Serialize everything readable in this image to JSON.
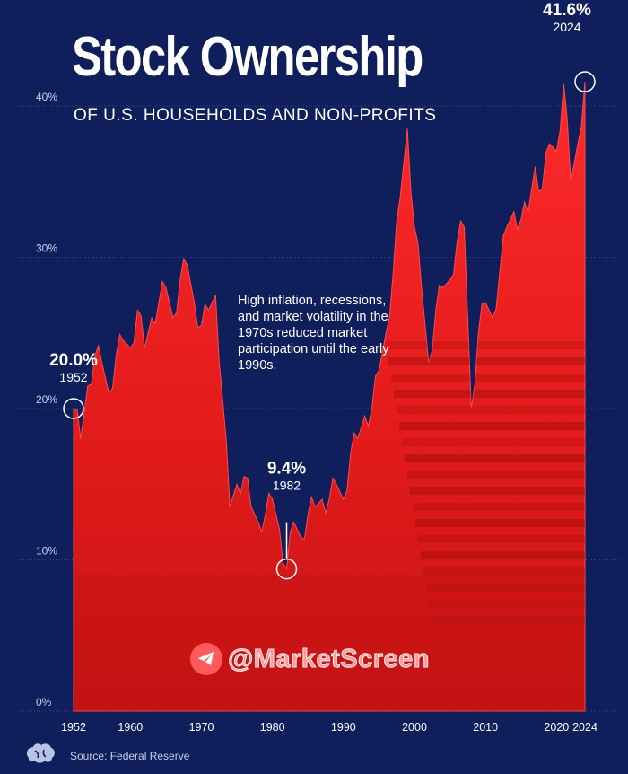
{
  "header": {
    "title": "Stock Ownership",
    "subtitle": "OF U.S. HOUSEHOLDS AND NON-PROFITS"
  },
  "annotation_text": "High inflation, recessions, and market volatility in the 1970s reduced market participation until the early 1990s.",
  "watermark": "@MarketScreen",
  "source": "Source: Federal Reserve",
  "colors": {
    "background": "#0f1f5c",
    "area": "#e01e1e",
    "area_light": "#ff3b3b",
    "text": "#ffffff"
  },
  "icons": {
    "watermark": "telegram-icon",
    "brand": "brain-logo-icon"
  },
  "chart_data": {
    "type": "area",
    "title": "Stock Ownership",
    "subtitle": "OF U.S. HOUSEHOLDS AND NON-PROFITS",
    "xlabel": "",
    "ylabel": "",
    "xlim": [
      1952,
      2024
    ],
    "ylim": [
      0,
      44
    ],
    "yticks": [
      0,
      10,
      20,
      30,
      40
    ],
    "ytick_labels": [
      "0%",
      "10%",
      "20%",
      "30%",
      "40%"
    ],
    "xticks": [
      1952,
      1960,
      1970,
      1980,
      1990,
      2000,
      2010,
      2020,
      2024
    ],
    "xtick_labels": [
      "1952",
      "1960",
      "1970",
      "1980",
      "1990",
      "2000",
      "2010",
      "2020",
      "2024"
    ],
    "grid": true,
    "x": [
      1952,
      1953,
      1954,
      1955,
      1956,
      1957,
      1958,
      1959,
      1960,
      1961,
      1962,
      1963,
      1964,
      1965,
      1966,
      1967,
      1968,
      1969,
      1970,
      1971,
      1972,
      1973,
      1974,
      1975,
      1976,
      1977,
      1978,
      1979,
      1980,
      1981,
      1982,
      1983,
      1984,
      1985,
      1986,
      1987,
      1988,
      1989,
      1990,
      1991,
      1992,
      1993,
      1994,
      1995,
      1996,
      1997,
      1998,
      1999,
      2000,
      2001,
      2002,
      2003,
      2004,
      2005,
      2006,
      2007,
      2008,
      2009,
      2010,
      2011,
      2012,
      2013,
      2014,
      2015,
      2016,
      2017,
      2018,
      2019,
      2020,
      2021,
      2022,
      2023,
      2024
    ],
    "values": [
      20.0,
      18.0,
      21.5,
      23.5,
      23.0,
      21.0,
      23.5,
      24.5,
      24.0,
      26.5,
      24.0,
      26.0,
      27.0,
      28.0,
      26.0,
      28.5,
      29.5,
      27.0,
      25.5,
      26.5,
      27.5,
      20.5,
      13.5,
      15.0,
      15.5,
      13.5,
      12.5,
      13.0,
      14.0,
      12.0,
      9.4,
      12.5,
      11.5,
      13.0,
      13.5,
      14.0,
      14.0,
      15.0,
      14.0,
      17.0,
      18.0,
      19.5,
      20.0,
      22.5,
      25.0,
      29.0,
      34.0,
      38.5,
      32.0,
      28.0,
      23.0,
      26.5,
      28.0,
      28.5,
      31.0,
      32.0,
      20.0,
      25.0,
      27.0,
      26.0,
      29.0,
      32.0,
      33.0,
      32.5,
      33.0,
      36.0,
      34.5,
      37.5,
      37.0,
      41.5,
      35.0,
      37.5,
      41.6
    ],
    "highlights": [
      {
        "x": 1952,
        "value": 20.0,
        "label": "20.0%",
        "year": "1952"
      },
      {
        "x": 1982,
        "value": 9.4,
        "label": "9.4%",
        "year": "1982"
      },
      {
        "x": 2024,
        "value": 41.6,
        "label": "41.6%",
        "year": "2024"
      }
    ]
  }
}
